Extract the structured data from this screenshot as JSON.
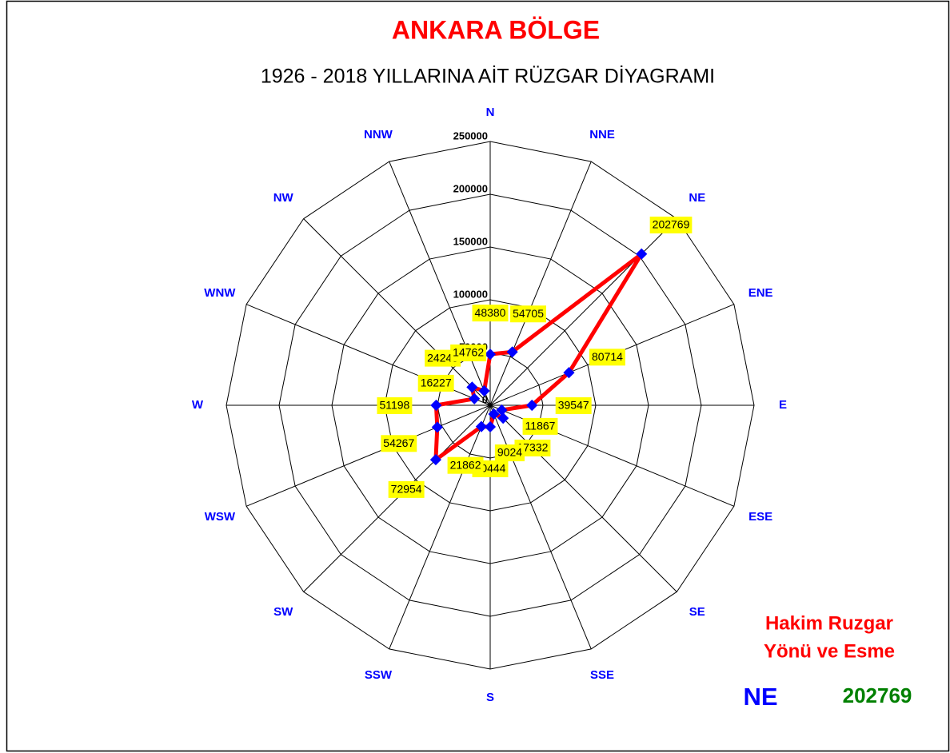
{
  "chart_data": {
    "type": "radar",
    "title": "ANKARA BÖLGE",
    "subtitle": "1926 - 2018 YILLARINA AİT RÜZGAR DİYAGRAMI",
    "categories": [
      "N",
      "NNE",
      "NE",
      "ENE",
      "E",
      "ESE",
      "SE",
      "SSE",
      "S",
      "SSW",
      "SW",
      "WSW",
      "W",
      "WNW",
      "NW",
      "NNW"
    ],
    "values": [
      48380,
      54705,
      202769,
      80714,
      39547,
      11867,
      17332,
      9024,
      20444,
      21862,
      72954,
      54267,
      51198,
      16227,
      24245,
      14762
    ],
    "color": "#ff0000",
    "marker_color": "#0000ff",
    "label_background": "#ffff00",
    "ylim": [
      0,
      250000
    ],
    "yticks": [
      0,
      50000,
      100000,
      150000,
      200000,
      250000
    ],
    "grid": true,
    "dominant": {
      "title_lines": [
        "Hakim Ruzgar",
        "Yönü ve Esme"
      ],
      "direction": "NE",
      "value": 202769
    }
  }
}
